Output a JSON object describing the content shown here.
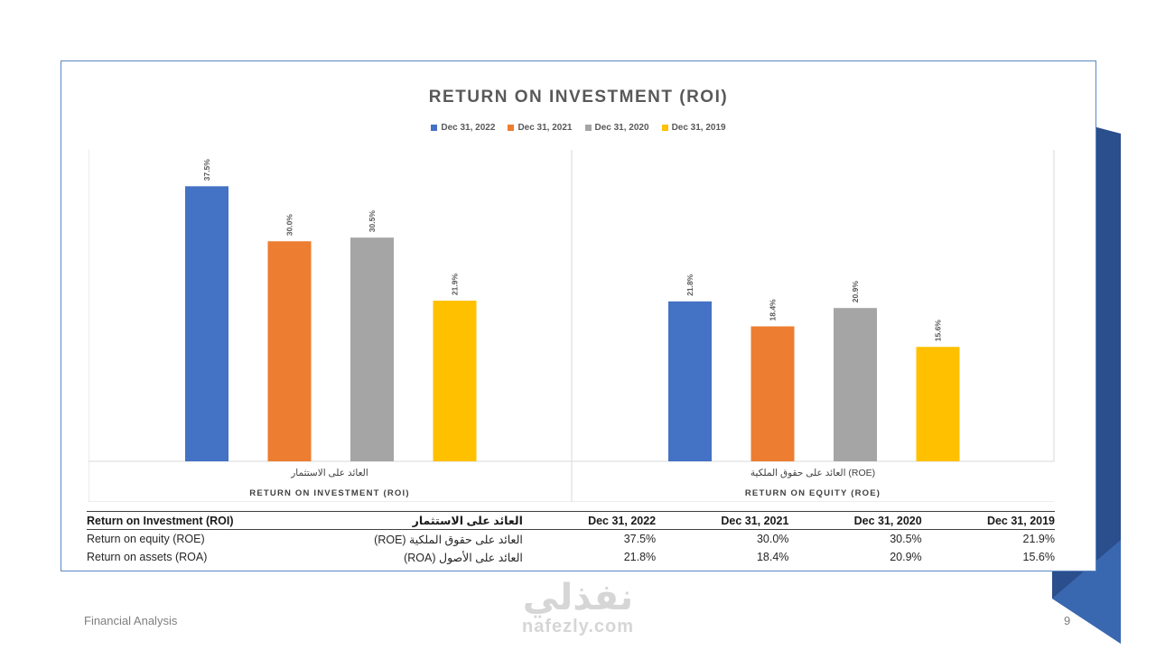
{
  "colors": {
    "series": [
      "#4472c4",
      "#ed7d31",
      "#a5a5a5",
      "#ffc000"
    ],
    "ribbon_dark": "#2b4e8c",
    "ribbon_light": "#3a68b0",
    "frame_border": "#5b87c5"
  },
  "chart_data": {
    "type": "bar",
    "title": "RETURN ON INVESTMENT (ROI)",
    "legend_position": "top",
    "series": [
      {
        "name": "Dec 31, 2022",
        "values": [
          37.5,
          21.8
        ]
      },
      {
        "name": "Dec 31, 2021",
        "values": [
          30.0,
          18.4
        ]
      },
      {
        "name": "Dec 31, 2020",
        "values": [
          30.5,
          20.9
        ]
      },
      {
        "name": "Dec 31, 2019",
        "values": [
          21.9,
          15.6
        ]
      }
    ],
    "value_labels": [
      [
        "37.5%",
        "21.8%"
      ],
      [
        "30.0%",
        "18.4%"
      ],
      [
        "30.5%",
        "20.9%"
      ],
      [
        "21.9%",
        "15.6%"
      ]
    ],
    "groups": [
      {
        "arabic": "العائد على الاستثمار",
        "english": "RETURN ON INVESTMENT (ROI)"
      },
      {
        "arabic": "العائد على حقوق الملكية (ROE)",
        "english": "RETURN ON EQUITY (ROE)"
      }
    ],
    "ylim": [
      0,
      40
    ],
    "grid": false
  },
  "table": {
    "header": [
      "Return on Investment (ROI)",
      "العائد على الاستثمار",
      "Dec 31, 2022",
      "Dec 31, 2021",
      "Dec 31, 2020",
      "Dec 31, 2019"
    ],
    "rows": [
      [
        "Return on equity (ROE)",
        "العائد على حقوق الملكية (ROE)",
        "37.5%",
        "30.0%",
        "30.5%",
        "21.9%"
      ],
      [
        "Return on assets (ROA)",
        "العائد على الأصول (ROA)",
        "21.8%",
        "18.4%",
        "20.9%",
        "15.6%"
      ]
    ]
  },
  "footer": {
    "left": "Financial Analysis",
    "page_number": "9"
  },
  "watermark": {
    "arabic": "نفذلي",
    "latin": "nafezly.com"
  }
}
